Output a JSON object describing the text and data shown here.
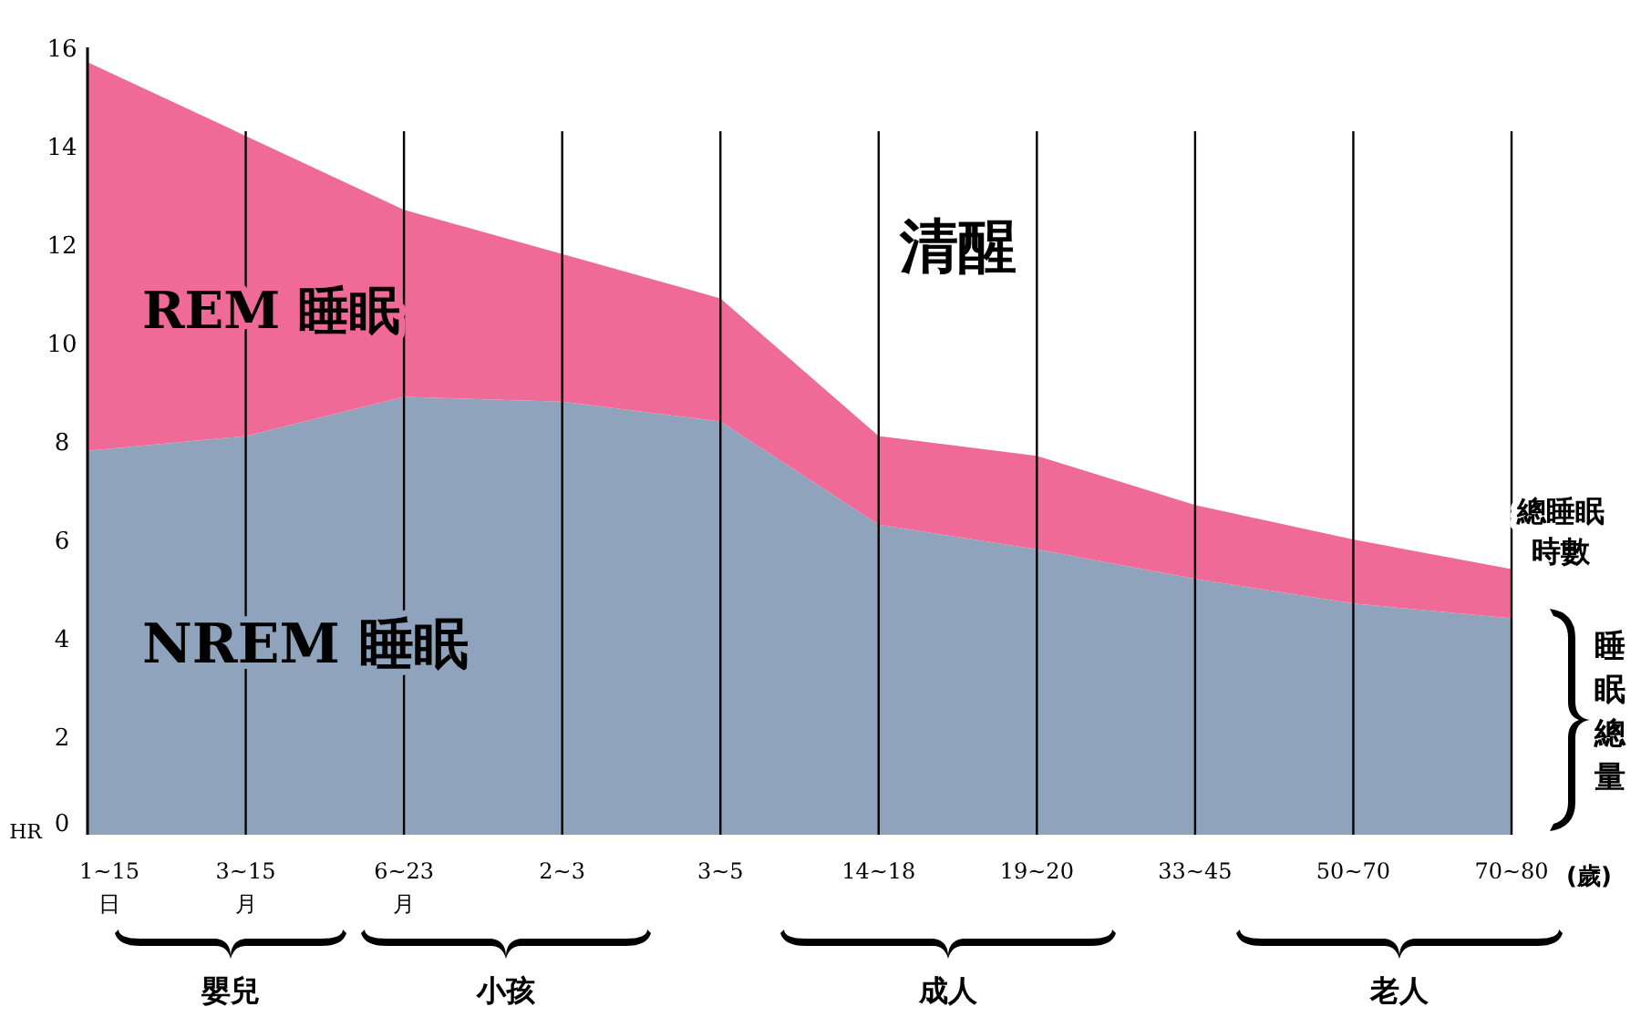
{
  "chart_data": {
    "type": "area",
    "stacked": true,
    "ylabel": "HR",
    "xlabel": "(歲)",
    "categories": [
      "1~15\n日",
      "3~15\n月",
      "6~23\n月",
      "2~3",
      "3~5",
      "14~18",
      "19~20",
      "33~45",
      "50~70",
      "70~80"
    ],
    "series": [
      {
        "name": "NREM 睡眠",
        "color": "#8fa3bd",
        "values": [
          7.8,
          8.1,
          8.9,
          8.8,
          8.4,
          6.3,
          5.8,
          5.2,
          4.7,
          4.4
        ]
      },
      {
        "name": "REM 睡眠",
        "color": "#f06a98",
        "values": [
          7.9,
          6.1,
          3.8,
          3.0,
          2.5,
          1.8,
          1.9,
          1.5,
          1.3,
          1.0
        ]
      }
    ],
    "ylim": [
      0,
      16
    ],
    "yticks": [
      0,
      2,
      4,
      6,
      8,
      10,
      12,
      14,
      16
    ],
    "grid": "x",
    "legend": false,
    "annotations": [
      "清醒",
      "總睡眠時數",
      "睡眠總量",
      "嬰兒",
      "小孩",
      "成人",
      "老人"
    ]
  }
}
